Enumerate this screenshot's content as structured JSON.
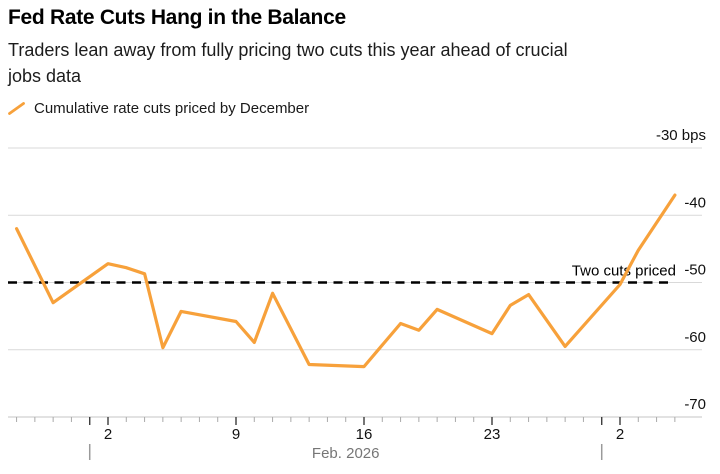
{
  "header": {
    "title": "Fed Rate Cuts Hang in the Balance",
    "subtitle_line1": "Traders lean away from fully pricing two cuts this year ahead of crucial",
    "subtitle_line2": "jobs data",
    "legend": {
      "label": "Cumulative rate cuts priced by December",
      "series_color": "#F7A13B"
    }
  },
  "colors": {
    "line": "#F7A13B",
    "gridline": "#d9d9d9",
    "reference_line": "#000000",
    "axis_line": "#c4c4c4",
    "minor_tick": "#aaaaaa",
    "major_tick": "#3c3c3c",
    "label_text": "#111111",
    "muted_text": "#767676"
  },
  "chart_data": {
    "type": "line",
    "title": "Fed Rate Cuts Hang in the Balance",
    "unit": "bps",
    "ylim": [
      -70,
      -30
    ],
    "grid": true,
    "legend_position": "top-left",
    "y_axis": {
      "side": "right",
      "ticks": [
        {
          "value": -30,
          "label": "-30 bps"
        },
        {
          "value": -40,
          "label": "-40"
        },
        {
          "value": -50,
          "label": "-50"
        },
        {
          "value": -60,
          "label": "-60"
        },
        {
          "value": -70,
          "label": "-70"
        }
      ]
    },
    "x_axis": {
      "month_label": "Feb. 2026",
      "day_range": [
        -5,
        31
      ],
      "labeled_ticks": [
        {
          "day": 0,
          "label": "2"
        },
        {
          "day": 7,
          "label": "9"
        },
        {
          "day": 14,
          "label": "16"
        },
        {
          "day": 21,
          "label": "23"
        },
        {
          "day": 28,
          "label": "2"
        }
      ],
      "long_tick_days": [
        -1,
        0,
        7,
        14,
        21,
        27,
        28
      ],
      "month_separator_days": [
        -1,
        27
      ]
    },
    "reference_line": {
      "value": -50,
      "label": "Two cuts priced",
      "style": "dashed"
    },
    "series": [
      {
        "name": "Cumulative rate cuts priced by December",
        "color": "#F7A13B",
        "points": [
          {
            "date": "Jan 28",
            "day": -5,
            "value": -42.0
          },
          {
            "date": "Jan 30",
            "day": -3,
            "value": -53.0
          },
          {
            "date": "Feb 2",
            "day": 0,
            "value": -47.2
          },
          {
            "date": "Feb 3",
            "day": 1,
            "value": -47.8
          },
          {
            "date": "Feb 4",
            "day": 2,
            "value": -48.7
          },
          {
            "date": "Feb 5",
            "day": 3,
            "value": -59.7
          },
          {
            "date": "Feb 6",
            "day": 4,
            "value": -54.3
          },
          {
            "date": "Feb 9",
            "day": 7,
            "value": -55.8
          },
          {
            "date": "Feb 10",
            "day": 8,
            "value": -58.9
          },
          {
            "date": "Feb 11",
            "day": 9,
            "value": -51.6
          },
          {
            "date": "Feb 13",
            "day": 11,
            "value": -62.2
          },
          {
            "date": "Feb 16",
            "day": 14,
            "value": -62.5
          },
          {
            "date": "Feb 18",
            "day": 16,
            "value": -56.1
          },
          {
            "date": "Feb 19",
            "day": 17,
            "value": -57.1
          },
          {
            "date": "Feb 20",
            "day": 18,
            "value": -54.0
          },
          {
            "date": "Feb 23",
            "day": 21,
            "value": -57.6
          },
          {
            "date": "Feb 24",
            "day": 22,
            "value": -53.4
          },
          {
            "date": "Feb 25",
            "day": 23,
            "value": -51.8
          },
          {
            "date": "Feb 27",
            "day": 25,
            "value": -59.5
          },
          {
            "date": "Mar 2",
            "day": 28,
            "value": -50.3
          },
          {
            "date": "Mar 3",
            "day": 29,
            "value": -45.2
          },
          {
            "date": "Mar 5",
            "day": 31,
            "value": -37.0
          }
        ]
      }
    ]
  }
}
